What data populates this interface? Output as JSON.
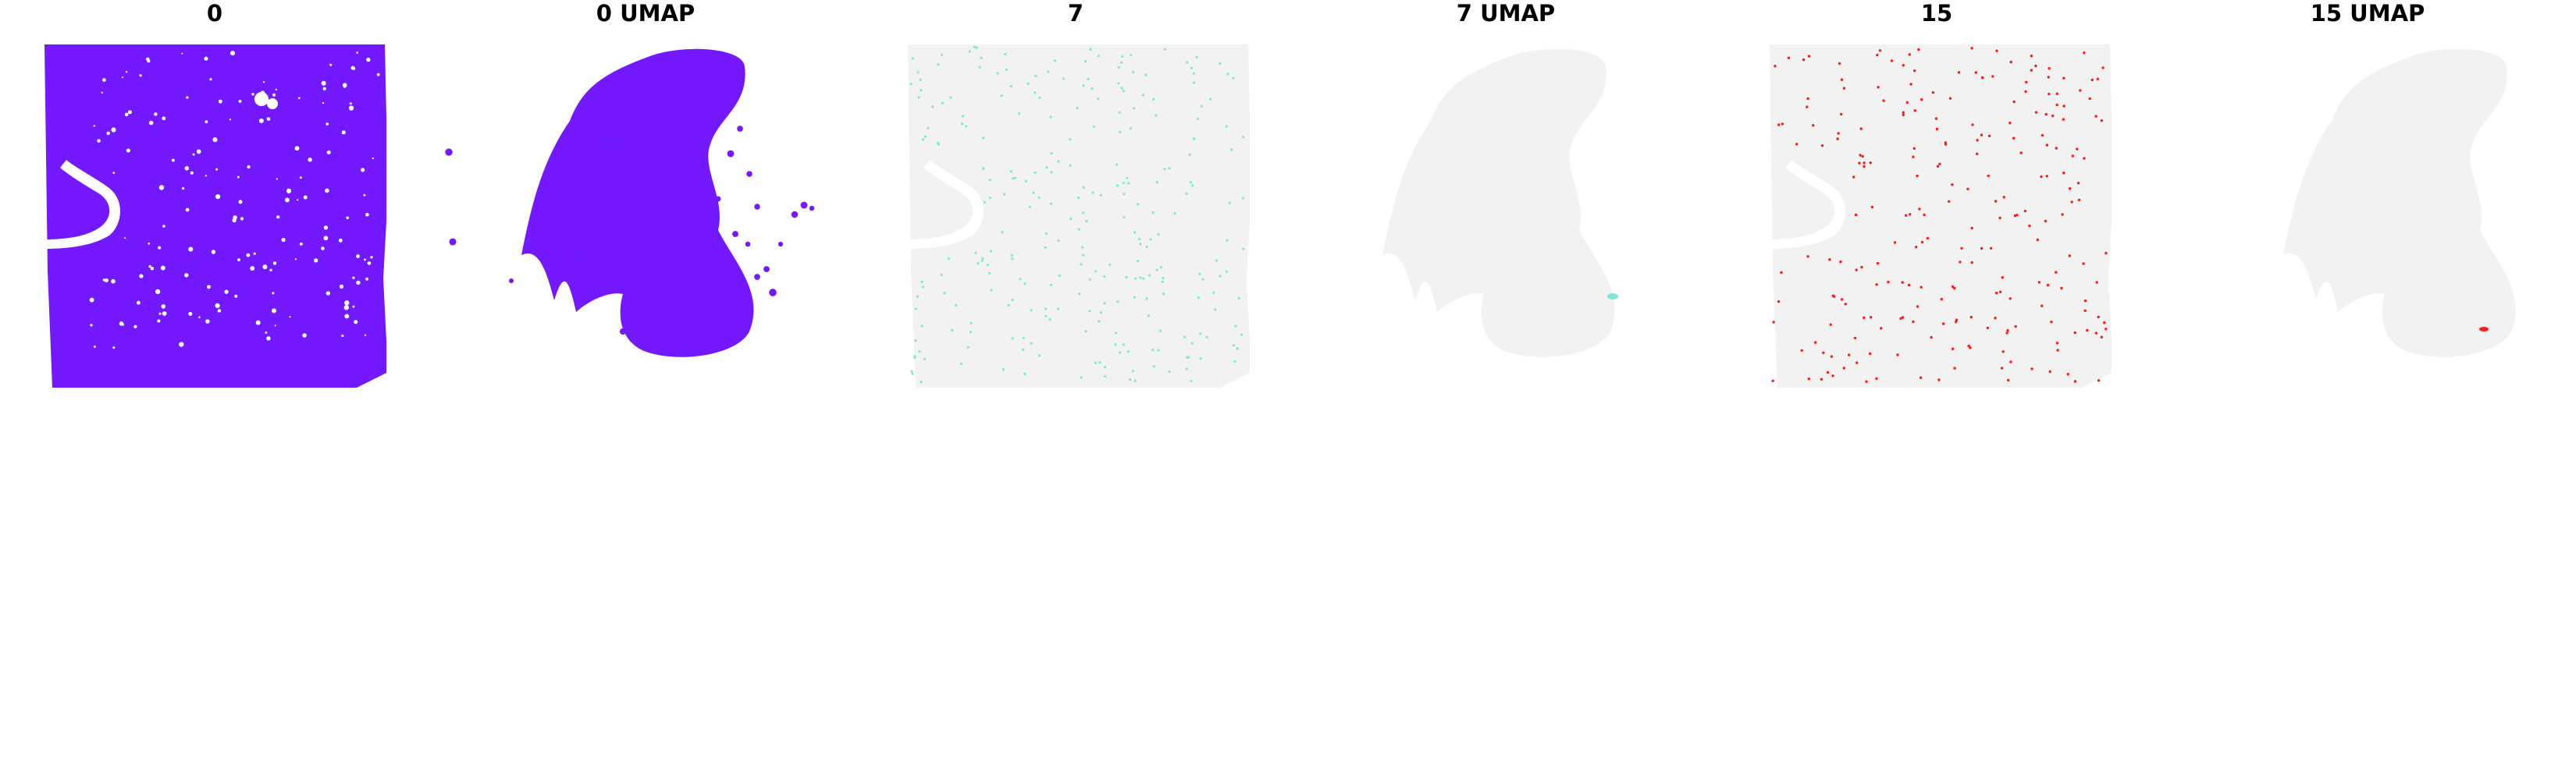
{
  "figure": {
    "panels": [
      {
        "title": "0"
      },
      {
        "title": "0 UMAP"
      },
      {
        "title": "7"
      },
      {
        "title": "7 UMAP"
      },
      {
        "title": "15"
      },
      {
        "title": "15 UMAP"
      }
    ]
  },
  "colors": {
    "background_cells": "#f2f2f2",
    "cluster_0": "#7318ff",
    "cluster_7": "#7fe7d7",
    "cluster_15": "#ff1a1a"
  },
  "chart_data": [
    {
      "type": "scatter",
      "title": "0",
      "view": "spatial",
      "highlight_cluster": "0",
      "highlight_color": "#7318ff",
      "axes": "off",
      "legend": "none"
    },
    {
      "type": "scatter",
      "title": "0 UMAP",
      "view": "umap",
      "highlight_cluster": "0",
      "highlight_color": "#7318ff",
      "axes": "off",
      "legend": "none"
    },
    {
      "type": "scatter",
      "title": "7",
      "view": "spatial",
      "highlight_cluster": "7",
      "highlight_color": "#7fe7d7",
      "axes": "off",
      "legend": "none"
    },
    {
      "type": "scatter",
      "title": "7 UMAP",
      "view": "umap",
      "highlight_cluster": "7",
      "highlight_color": "#7fe7d7",
      "axes": "off",
      "legend": "none"
    },
    {
      "type": "scatter",
      "title": "15",
      "view": "spatial",
      "highlight_cluster": "15",
      "highlight_color": "#ff1a1a",
      "axes": "off",
      "legend": "none"
    },
    {
      "type": "scatter",
      "title": "15 UMAP",
      "view": "umap",
      "highlight_cluster": "15",
      "highlight_color": "#ff1a1a",
      "axes": "off",
      "legend": "none"
    }
  ]
}
